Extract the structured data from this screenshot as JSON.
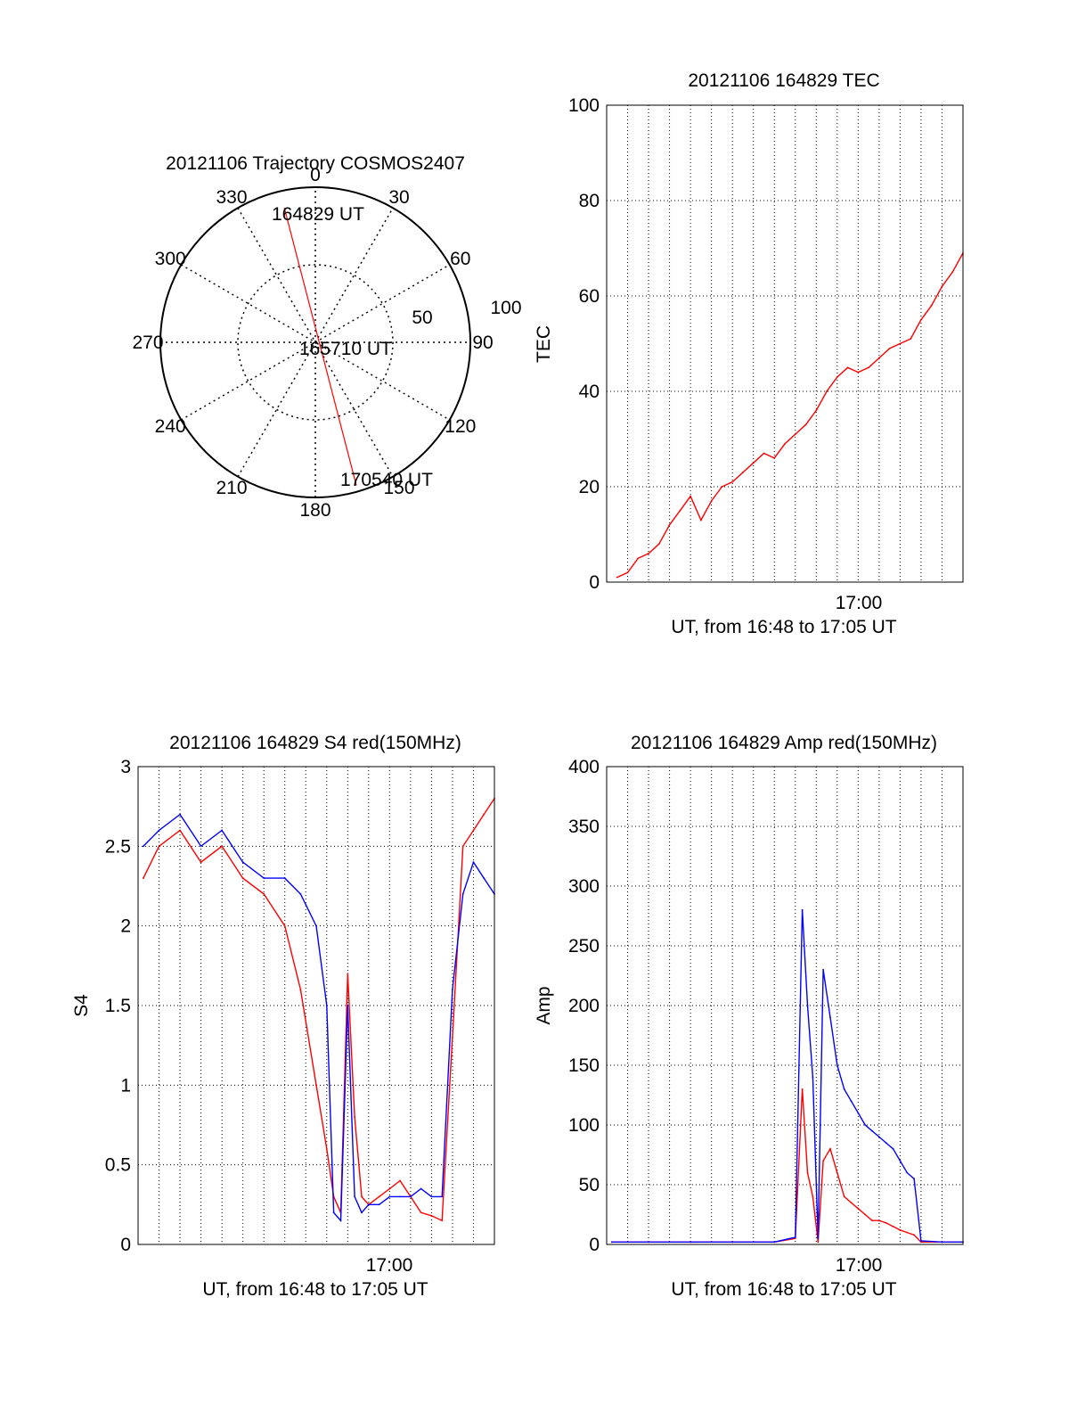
{
  "chart_data": [
    {
      "type": "polar",
      "title": "20121106 Trajectory COSMOS2407",
      "angle_labels": [
        "0",
        "30",
        "60",
        "90",
        "120",
        "150",
        "180",
        "210",
        "240",
        "270",
        "300",
        "330"
      ],
      "radial_labels": [
        "50",
        "100"
      ],
      "trajectory": {
        "color": "#ff0000",
        "start": {
          "label": "164829 UT",
          "azimuth": 347,
          "zenith_distance": 89
        },
        "middle": {
          "label": "165710 UT",
          "azimuth": 0,
          "zenith_distance": 0
        },
        "end": {
          "label": "170540 UT",
          "azimuth": 164,
          "zenith_distance": 96
        }
      }
    },
    {
      "type": "line",
      "title": "20121106 164829 TEC",
      "xlabel": "UT, from 16:48 to 17:05 UT",
      "ylabel": "TEC",
      "xlim": [
        "16:48",
        "17:05"
      ],
      "ylim": [
        0,
        100
      ],
      "yticks": [
        "0",
        "20",
        "40",
        "60",
        "80",
        "100"
      ],
      "xtick_label": "17:00",
      "grid": true,
      "series": [
        {
          "color": "#ff0000",
          "x": [
            "16:48:30",
            "16:49:00",
            "16:49:30",
            "16:50:00",
            "16:50:30",
            "16:51:00",
            "16:51:30",
            "16:52:00",
            "16:52:30",
            "16:53:00",
            "16:53:30",
            "16:54:00",
            "16:54:30",
            "16:55:00",
            "16:55:30",
            "16:56:00",
            "16:56:30",
            "16:57:00",
            "16:57:30",
            "16:58:00",
            "16:58:30",
            "16:59:00",
            "16:59:30",
            "17:00:00",
            "17:00:30",
            "17:01:00",
            "17:01:30",
            "17:02:00",
            "17:02:30",
            "17:03:00",
            "17:03:30",
            "17:04:00",
            "17:04:30",
            "17:05:00"
          ],
          "y": [
            1,
            2,
            5,
            6,
            8,
            12,
            15,
            18,
            13,
            17,
            20,
            21,
            23,
            25,
            27,
            26,
            29,
            31,
            33,
            36,
            40,
            43,
            45,
            44,
            45,
            47,
            49,
            50,
            51,
            55,
            58,
            62,
            65,
            69
          ]
        }
      ]
    },
    {
      "type": "line",
      "title": "20121106 164829 S4 red(150MHz)",
      "xlabel": "UT, from 16:48 to 17:05 UT",
      "ylabel": "S4",
      "xlim": [
        "16:48",
        "17:05"
      ],
      "ylim": [
        0,
        3
      ],
      "yticks": [
        "0",
        "0.5",
        "1",
        "1.5",
        "2",
        "2.5",
        "3"
      ],
      "xtick_label": "17:00",
      "grid": true,
      "series": [
        {
          "color": "#ff0000",
          "x": [
            "16:48:15",
            "16:49:00",
            "16:50:00",
            "16:51:00",
            "16:52:00",
            "16:53:00",
            "16:54:00",
            "16:55:00",
            "16:55:45",
            "16:56:30",
            "16:57:00",
            "16:57:20",
            "16:57:40",
            "16:58:00",
            "16:58:20",
            "16:58:40",
            "16:59:00",
            "16:59:30",
            "17:00:00",
            "17:00:30",
            "17:01:00",
            "17:01:30",
            "17:02:00",
            "17:02:30",
            "17:03:00",
            "17:03:30",
            "17:04:00",
            "17:04:30",
            "17:05:00"
          ],
          "y": [
            2.3,
            2.5,
            2.6,
            2.4,
            2.5,
            2.3,
            2.2,
            2.0,
            1.6,
            1.0,
            0.6,
            0.3,
            0.2,
            1.7,
            0.8,
            0.3,
            0.25,
            0.3,
            0.35,
            0.4,
            0.3,
            0.2,
            0.18,
            0.15,
            1.3,
            2.5,
            2.6,
            2.7,
            2.8
          ]
        },
        {
          "color": "#0000ff",
          "x": [
            "16:48:15",
            "16:49:00",
            "16:50:00",
            "16:51:00",
            "16:52:00",
            "16:53:00",
            "16:54:00",
            "16:55:00",
            "16:55:45",
            "16:56:30",
            "16:57:00",
            "16:57:20",
            "16:57:40",
            "16:58:00",
            "16:58:20",
            "16:58:40",
            "16:59:00",
            "16:59:30",
            "17:00:00",
            "17:00:30",
            "17:01:00",
            "17:01:30",
            "17:02:00",
            "17:02:30",
            "17:03:00",
            "17:03:30",
            "17:04:00",
            "17:04:30",
            "17:05:00"
          ],
          "y": [
            2.5,
            2.6,
            2.7,
            2.5,
            2.6,
            2.4,
            2.3,
            2.3,
            2.2,
            2.0,
            1.5,
            0.2,
            0.15,
            1.5,
            0.3,
            0.2,
            0.25,
            0.25,
            0.3,
            0.3,
            0.3,
            0.35,
            0.3,
            0.3,
            1.6,
            2.2,
            2.4,
            2.3,
            2.2
          ]
        }
      ]
    },
    {
      "type": "line",
      "title": "20121106 164829 Amp red(150MHz)",
      "xlabel": "UT, from 16:48 to 17:05 UT",
      "ylabel": "Amp",
      "xlim": [
        "16:48",
        "17:05"
      ],
      "ylim": [
        0,
        400
      ],
      "yticks": [
        "0",
        "50",
        "100",
        "150",
        "200",
        "250",
        "300",
        "350",
        "400"
      ],
      "xtick_label": "17:00",
      "grid": true,
      "series": [
        {
          "color": "#ff0000",
          "x": [
            "16:48:15",
            "16:50:00",
            "16:52:00",
            "16:54:00",
            "16:56:00",
            "16:57:00",
            "16:57:20",
            "16:57:35",
            "16:57:50",
            "16:58:05",
            "16:58:20",
            "16:58:40",
            "16:59:00",
            "16:59:20",
            "16:59:40",
            "17:00:00",
            "17:00:20",
            "17:00:40",
            "17:01:00",
            "17:01:20",
            "17:01:40",
            "17:02:00",
            "17:02:20",
            "17:02:40",
            "17:03:00",
            "17:04:00",
            "17:05:00"
          ],
          "y": [
            2,
            2,
            2,
            2,
            2,
            5,
            130,
            60,
            40,
            2,
            70,
            80,
            60,
            40,
            35,
            30,
            25,
            20,
            20,
            18,
            15,
            12,
            10,
            8,
            2,
            2,
            2
          ]
        },
        {
          "color": "#0000ff",
          "x": [
            "16:48:15",
            "16:50:00",
            "16:52:00",
            "16:54:00",
            "16:56:00",
            "16:57:00",
            "16:57:20",
            "16:57:35",
            "16:57:50",
            "16:58:05",
            "16:58:20",
            "16:58:40",
            "16:59:00",
            "16:59:20",
            "16:59:40",
            "17:00:00",
            "17:00:20",
            "17:00:40",
            "17:01:00",
            "17:01:20",
            "17:01:40",
            "17:02:00",
            "17:02:20",
            "17:02:40",
            "17:03:00",
            "17:04:00",
            "17:05:00"
          ],
          "y": [
            2,
            2,
            2,
            2,
            2,
            6,
            280,
            200,
            140,
            5,
            230,
            190,
            150,
            130,
            120,
            110,
            100,
            95,
            90,
            85,
            80,
            70,
            60,
            55,
            3,
            2,
            2
          ]
        }
      ]
    }
  ]
}
